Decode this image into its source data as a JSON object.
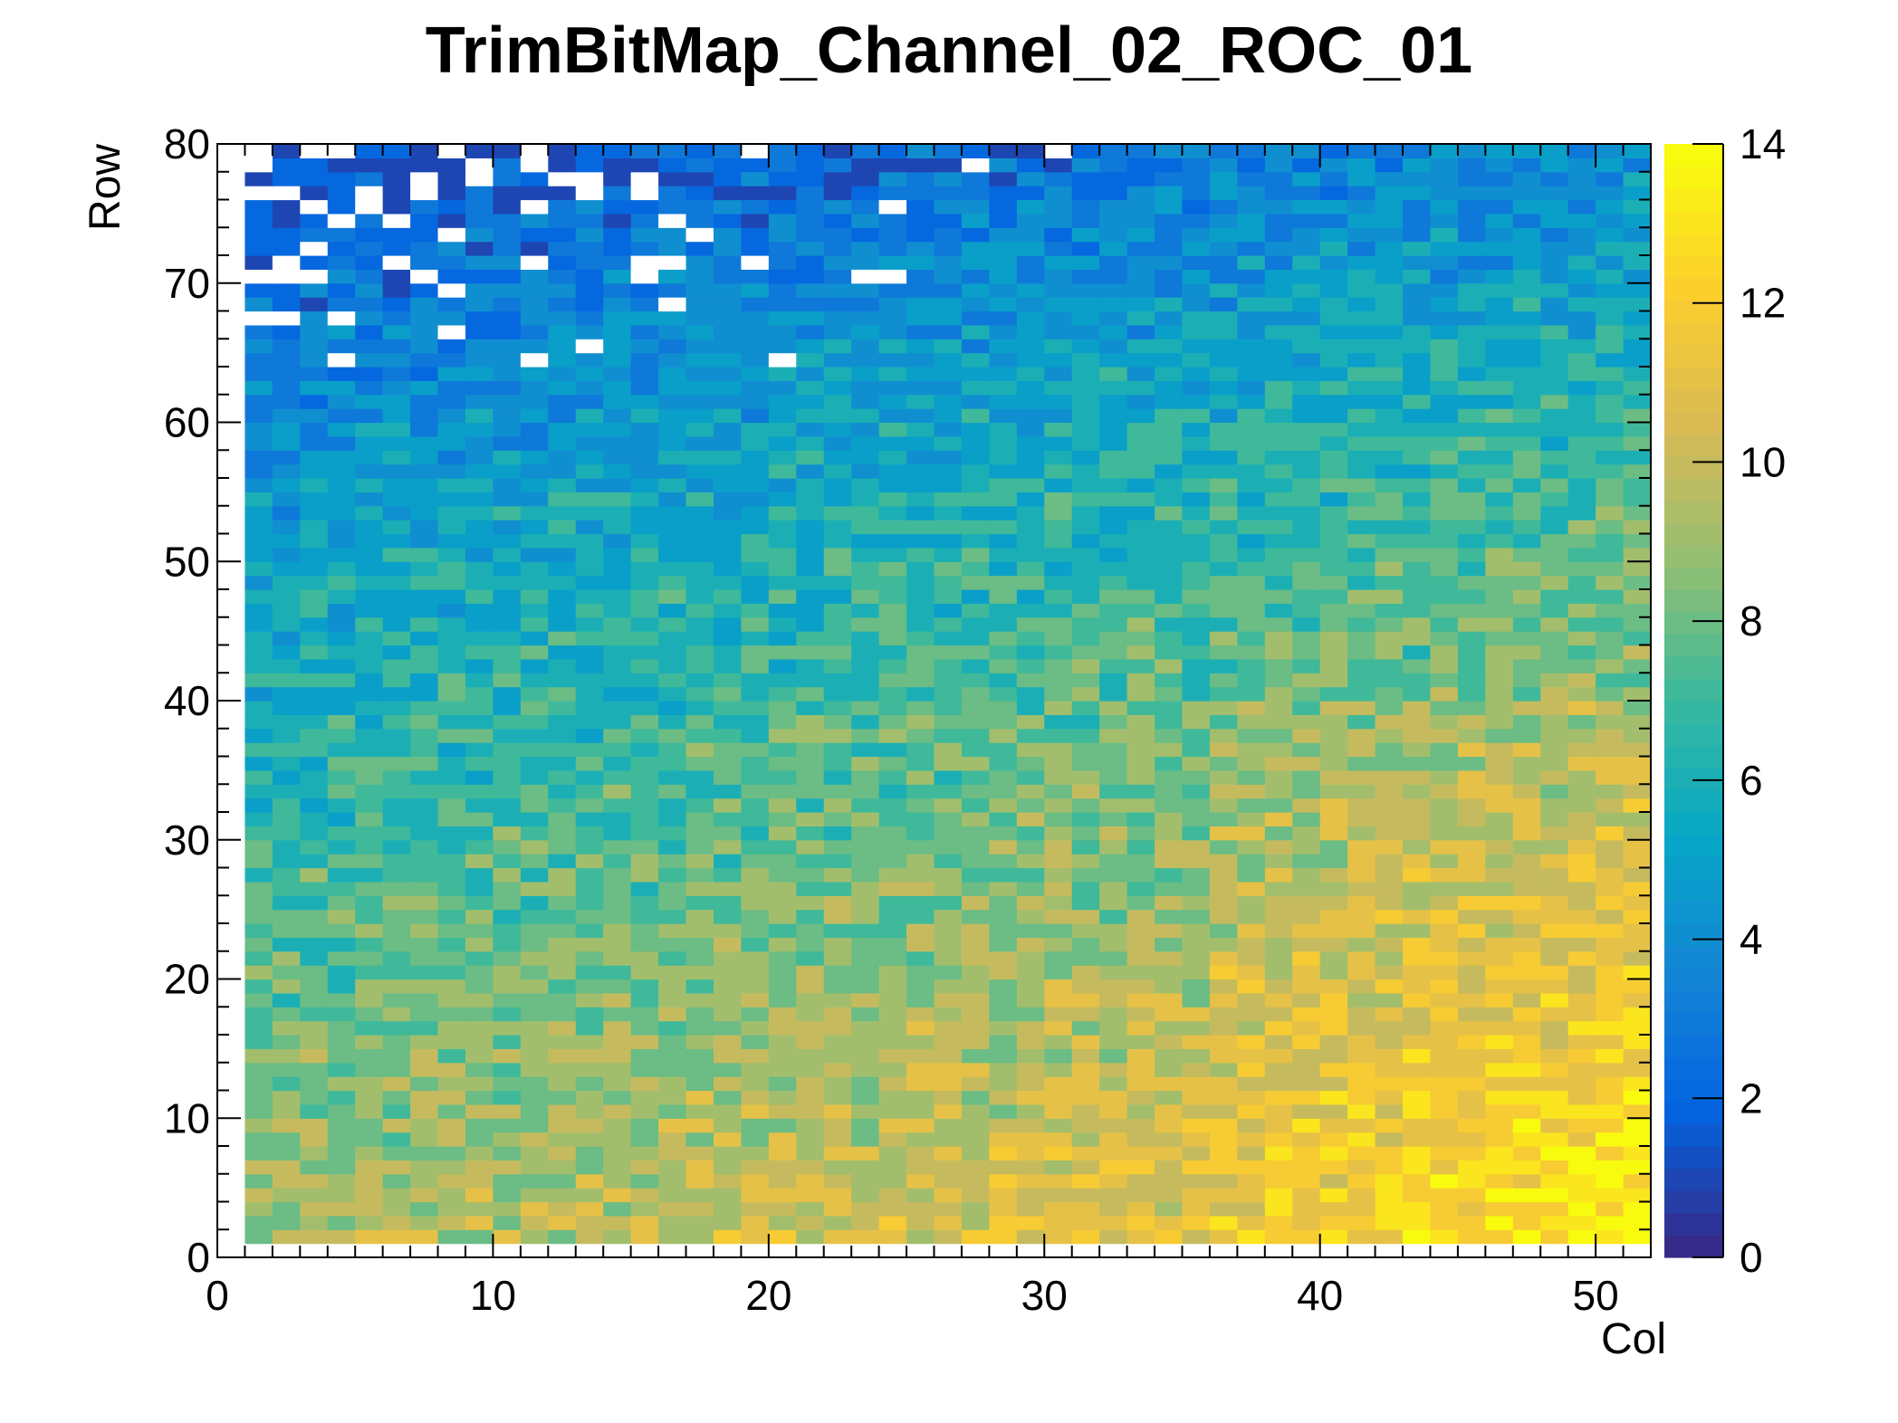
{
  "chart_data": {
    "type": "heatmap",
    "title": "TrimBitMap_Channel_02_ROC_01",
    "xlabel": "Col",
    "ylabel": "Row",
    "xlim": [
      0,
      52
    ],
    "ylim": [
      0,
      80
    ],
    "x_ticks": [
      "0",
      "10",
      "20",
      "30",
      "40",
      "50"
    ],
    "y_ticks": [
      "0",
      "10",
      "20",
      "30",
      "40",
      "50",
      "60",
      "70",
      "80"
    ],
    "z_range": [
      0,
      14
    ],
    "z_ticks": [
      "0",
      "2",
      "4",
      "6",
      "8",
      "10",
      "12",
      "14"
    ],
    "n_cols": 51,
    "n_rows": 79,
    "palette": "kBird",
    "palette_stops": [
      "#352a87",
      "#0363e1",
      "#1485d4",
      "#06a7c6",
      "#38b99e",
      "#92bf73",
      "#d9ba56",
      "#fcce2e",
      "#f9fb0e"
    ],
    "empty_color": "#ffffff",
    "description_of_values": "Trim bit value per pixel; low (~1-4) in upper rows 60-80 with empty cells at top-left, ~5-8 in the middle, rising to ~10-13 toward bottom-right (cols 36-50, rows 1-40)"
  }
}
